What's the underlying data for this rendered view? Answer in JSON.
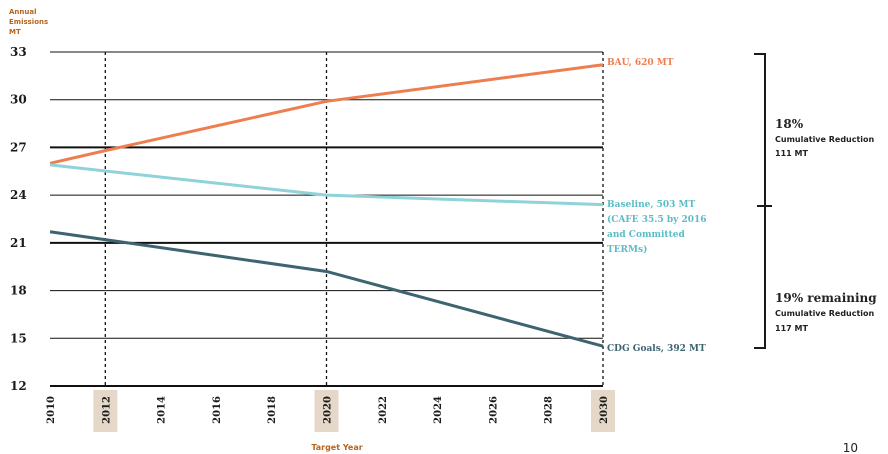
{
  "chart_data": {
    "type": "line",
    "ylabel": [
      "Annual",
      "Emissions",
      "MT"
    ],
    "xlabel": "Target Year",
    "ylim": [
      12,
      33
    ],
    "yticks": [
      12,
      15,
      18,
      21,
      24,
      27,
      30,
      33
    ],
    "x_ticks": [
      2010,
      2012,
      2014,
      2016,
      2018,
      2020,
      2022,
      2024,
      2026,
      2028,
      2030
    ],
    "x_tick_labels": [
      "2010",
      "2012",
      "2014",
      "2016",
      "2018",
      "2020",
      "2022",
      "2024",
      "2026",
      "2028",
      "2030"
    ],
    "highlighted_years": [
      2012,
      2020,
      2030
    ],
    "series": [
      {
        "name": "BAU",
        "color": "#ee7e50",
        "x": [
          2010,
          2012,
          2020,
          2030
        ],
        "y": [
          26.0,
          26.8,
          29.9,
          32.2
        ]
      },
      {
        "name": "Baseline",
        "color": "#8fd3d9",
        "x": [
          2010,
          2020,
          2030
        ],
        "y": [
          25.9,
          24.0,
          23.4
        ]
      },
      {
        "name": "CDG Goals",
        "color": "#3d6470",
        "x": [
          2010,
          2020,
          2030
        ],
        "y": [
          21.7,
          19.2,
          14.5
        ]
      }
    ],
    "annotations": {
      "bau": [
        "BAU, 620 MT"
      ],
      "baseline": [
        "Baseline, 503 MT",
        "(CAFE 35.5 by 2016",
        "and Committed",
        "TERMs)"
      ],
      "cdg": [
        "CDG Goals, 392 MT"
      ]
    },
    "bracket": {
      "upper": {
        "percent": "18%",
        "label": "Cumulative Reduction",
        "value": "111 MT"
      },
      "lower": {
        "percent": "19% remaining",
        "label": "Cumulative Reduction",
        "value": "117 MT"
      }
    }
  },
  "page_number": "10"
}
